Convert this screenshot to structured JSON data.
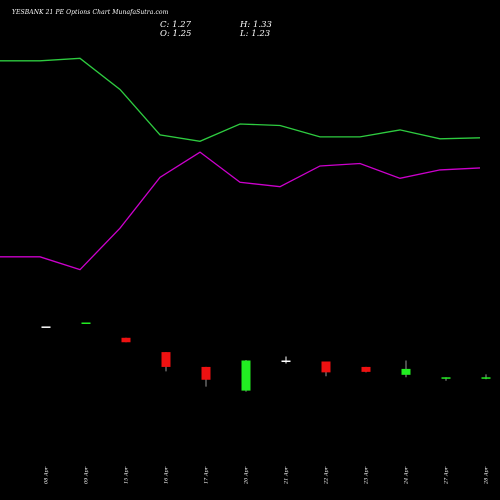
{
  "title": "YESBANK 21 PE Options Chart MunafaSutra.com",
  "ohlc": {
    "c_label": "C: 1.27",
    "h_label": "H: 1.33",
    "o_label": "O: 1.25",
    "l_label": "L: 1.23"
  },
  "colors": {
    "background": "#000000",
    "upper_band": "#2ecc40",
    "lower_band": "#cc00cc",
    "bull": "#22ee22",
    "bear": "#ee1111",
    "neutral": "#ffffff"
  },
  "chart_data": {
    "type": "candlestick",
    "title": "YESBANK 21 PE Options Chart MunafaSutra.com",
    "x_labels": [
      "08 Apr",
      "09 Apr",
      "15 Apr",
      "16 Apr",
      "17 Apr",
      "20 Apr",
      "21 Apr",
      "22 Apr",
      "23 Apr",
      "24 Apr",
      "27 Apr",
      "28 Apr"
    ],
    "candles": [
      {
        "date": "08 Apr",
        "open": 2.3,
        "high": 2.3,
        "low": 2.3,
        "close": 2.3,
        "dir": "neutral"
      },
      {
        "date": "09 Apr",
        "open": 2.38,
        "high": 2.38,
        "low": 2.38,
        "close": 2.38,
        "dir": "bull"
      },
      {
        "date": "15 Apr",
        "open": 2.07,
        "high": 2.07,
        "low": 1.98,
        "close": 1.98,
        "dir": "bear"
      },
      {
        "date": "16 Apr",
        "open": 1.78,
        "high": 1.78,
        "low": 1.39,
        "close": 1.48,
        "dir": "bear"
      },
      {
        "date": "17 Apr",
        "open": 1.48,
        "high": 1.48,
        "low": 1.08,
        "close": 1.22,
        "dir": "bear"
      },
      {
        "date": "20 Apr",
        "open": 1.0,
        "high": 1.62,
        "low": 0.98,
        "close": 1.61,
        "dir": "bull"
      },
      {
        "date": "21 Apr",
        "open": 1.61,
        "high": 1.69,
        "low": 1.55,
        "close": 1.59,
        "dir": "neutral"
      },
      {
        "date": "22 Apr",
        "open": 1.59,
        "high": 1.59,
        "low": 1.29,
        "close": 1.37,
        "dir": "bear"
      },
      {
        "date": "23 Apr",
        "open": 1.48,
        "high": 1.48,
        "low": 1.37,
        "close": 1.38,
        "dir": "bear"
      },
      {
        "date": "24 Apr",
        "open": 1.32,
        "high": 1.61,
        "low": 1.27,
        "close": 1.44,
        "dir": "bull"
      },
      {
        "date": "27 Apr",
        "open": 1.25,
        "high": 1.27,
        "low": 1.2,
        "close": 1.27,
        "dir": "bull"
      },
      {
        "date": "28 Apr",
        "open": 1.25,
        "high": 1.33,
        "low": 1.23,
        "close": 1.27,
        "dir": "bull"
      }
    ],
    "upper_band": [
      7.68,
      7.68,
      7.73,
      7.1,
      6.18,
      6.05,
      6.4,
      6.37,
      6.14,
      6.14,
      6.28,
      6.1,
      6.12
    ],
    "lower_band": [
      3.71,
      3.71,
      3.45,
      4.29,
      5.32,
      5.83,
      5.22,
      5.13,
      5.55,
      5.6,
      5.3,
      5.47,
      5.51
    ],
    "band_x_positions": [
      0,
      1,
      2,
      3,
      4,
      5,
      6,
      7,
      8,
      9,
      10,
      11,
      12
    ],
    "ylim": [
      0.0,
      8.0
    ],
    "xlim": [
      -1.15,
      11.35
    ],
    "grid": false,
    "legend": "none"
  }
}
